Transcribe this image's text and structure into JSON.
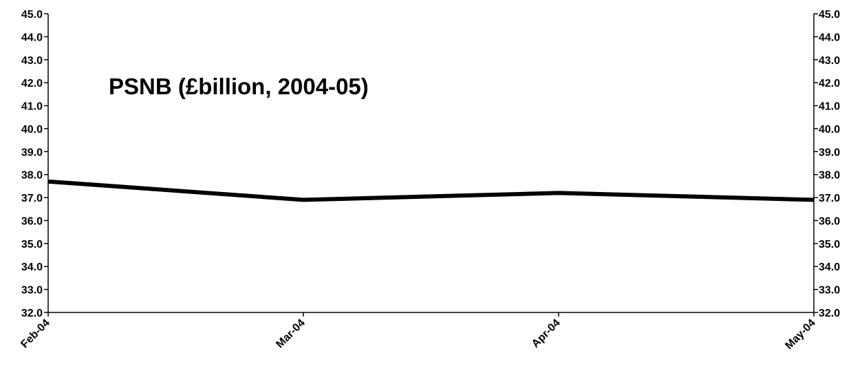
{
  "chart_data": {
    "type": "line",
    "title": "PSNB (£billion, 2004-05)",
    "categories": [
      "Feb-04",
      "Mar-04",
      "Apr-04",
      "May-04"
    ],
    "series": [
      {
        "values": [
          37.7,
          36.9,
          37.2,
          36.9
        ],
        "color": "#000000"
      }
    ],
    "ylim": [
      32.0,
      45.0
    ],
    "ytick_step": 1.0,
    "yticks": [
      "32.0",
      "33.0",
      "34.0",
      "35.0",
      "36.0",
      "37.0",
      "38.0",
      "39.0",
      "40.0",
      "41.0",
      "42.0",
      "43.0",
      "44.0",
      "45.0"
    ],
    "y_axis_left": true,
    "y_axis_right": true,
    "grid": false,
    "legend": "none",
    "xlabel": "",
    "ylabel": ""
  }
}
